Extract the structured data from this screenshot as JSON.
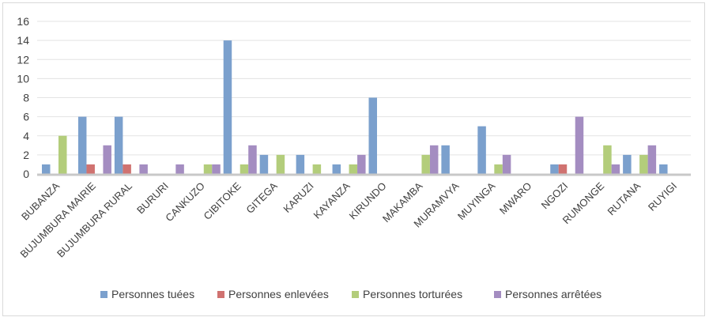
{
  "chart_data": {
    "type": "bar",
    "title": "",
    "xlabel": "",
    "ylabel": "",
    "ylim": [
      0,
      16
    ],
    "yticks": [
      0,
      2,
      4,
      6,
      8,
      10,
      12,
      14,
      16
    ],
    "grid": true,
    "legend_position": "bottom",
    "categories": [
      "BUBANZA",
      "BUJUMBURA MAIRIE",
      "BUJUMBURA RURAL",
      "BURURI",
      "CANKUZO",
      "CIBITOKE",
      "GITEGA",
      "KARUZI",
      "KAYANZA",
      "KIRUNDO",
      "MAKAMBA",
      "MURAMVYA",
      "MUYINGA",
      "MWARO",
      "NGOZI",
      "RUMONGE",
      "RUTANA",
      "RUYIGI"
    ],
    "series": [
      {
        "name": "Personnes tuées",
        "color": "#7ba0cd",
        "values": [
          1,
          6,
          6,
          0,
          0,
          14,
          2,
          2,
          1,
          8,
          0,
          3,
          5,
          0,
          1,
          0,
          2,
          1
        ]
      },
      {
        "name": "Personnes enlevées",
        "color": "#d07270",
        "values": [
          0,
          1,
          1,
          0,
          0,
          0,
          0,
          0,
          0,
          0,
          0,
          0,
          0,
          0,
          1,
          0,
          0,
          0
        ]
      },
      {
        "name": "Personnes torturées",
        "color": "#b3cd7b",
        "values": [
          4,
          0,
          0,
          0,
          1,
          1,
          2,
          1,
          1,
          0,
          2,
          0,
          1,
          0,
          0,
          3,
          2,
          0
        ]
      },
      {
        "name": "Personnes arrêtées",
        "color": "#a48dc1",
        "values": [
          0,
          3,
          1,
          1,
          1,
          3,
          0,
          0,
          2,
          0,
          3,
          0,
          2,
          0,
          6,
          1,
          3,
          0
        ]
      }
    ]
  }
}
